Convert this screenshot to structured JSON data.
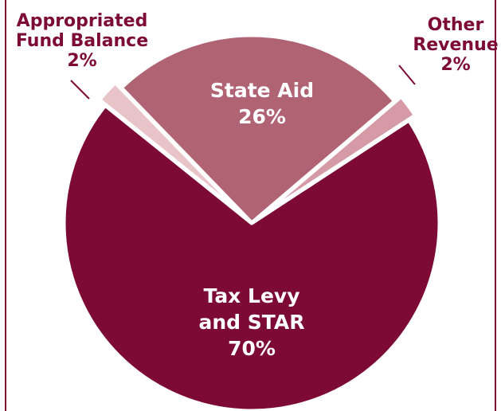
{
  "chart_data": {
    "type": "pie",
    "slices": [
      {
        "name": "State Aid",
        "value": 26,
        "label_lines": [
          "State Aid",
          "26%"
        ],
        "color": "#b06373",
        "inside": true
      },
      {
        "name": "Other Revenue",
        "value": 2,
        "label_lines": [
          "Other",
          "Revenue",
          "2%"
        ],
        "color": "#d59aa5",
        "inside": false
      },
      {
        "name": "Tax Levy and STAR",
        "value": 70,
        "label_lines": [
          "Tax Levy",
          "and STAR",
          "70%"
        ],
        "color": "#7d0a35",
        "inside": true
      },
      {
        "name": "Appropriated Fund Balance",
        "value": 2,
        "label_lines": [
          "Appropriated",
          "Fund Balance",
          "2%"
        ],
        "color": "#e8c3c8",
        "inside": false
      }
    ],
    "label_color": "#7d0a35",
    "frame_color": "#7d0a35",
    "legend": "none"
  }
}
